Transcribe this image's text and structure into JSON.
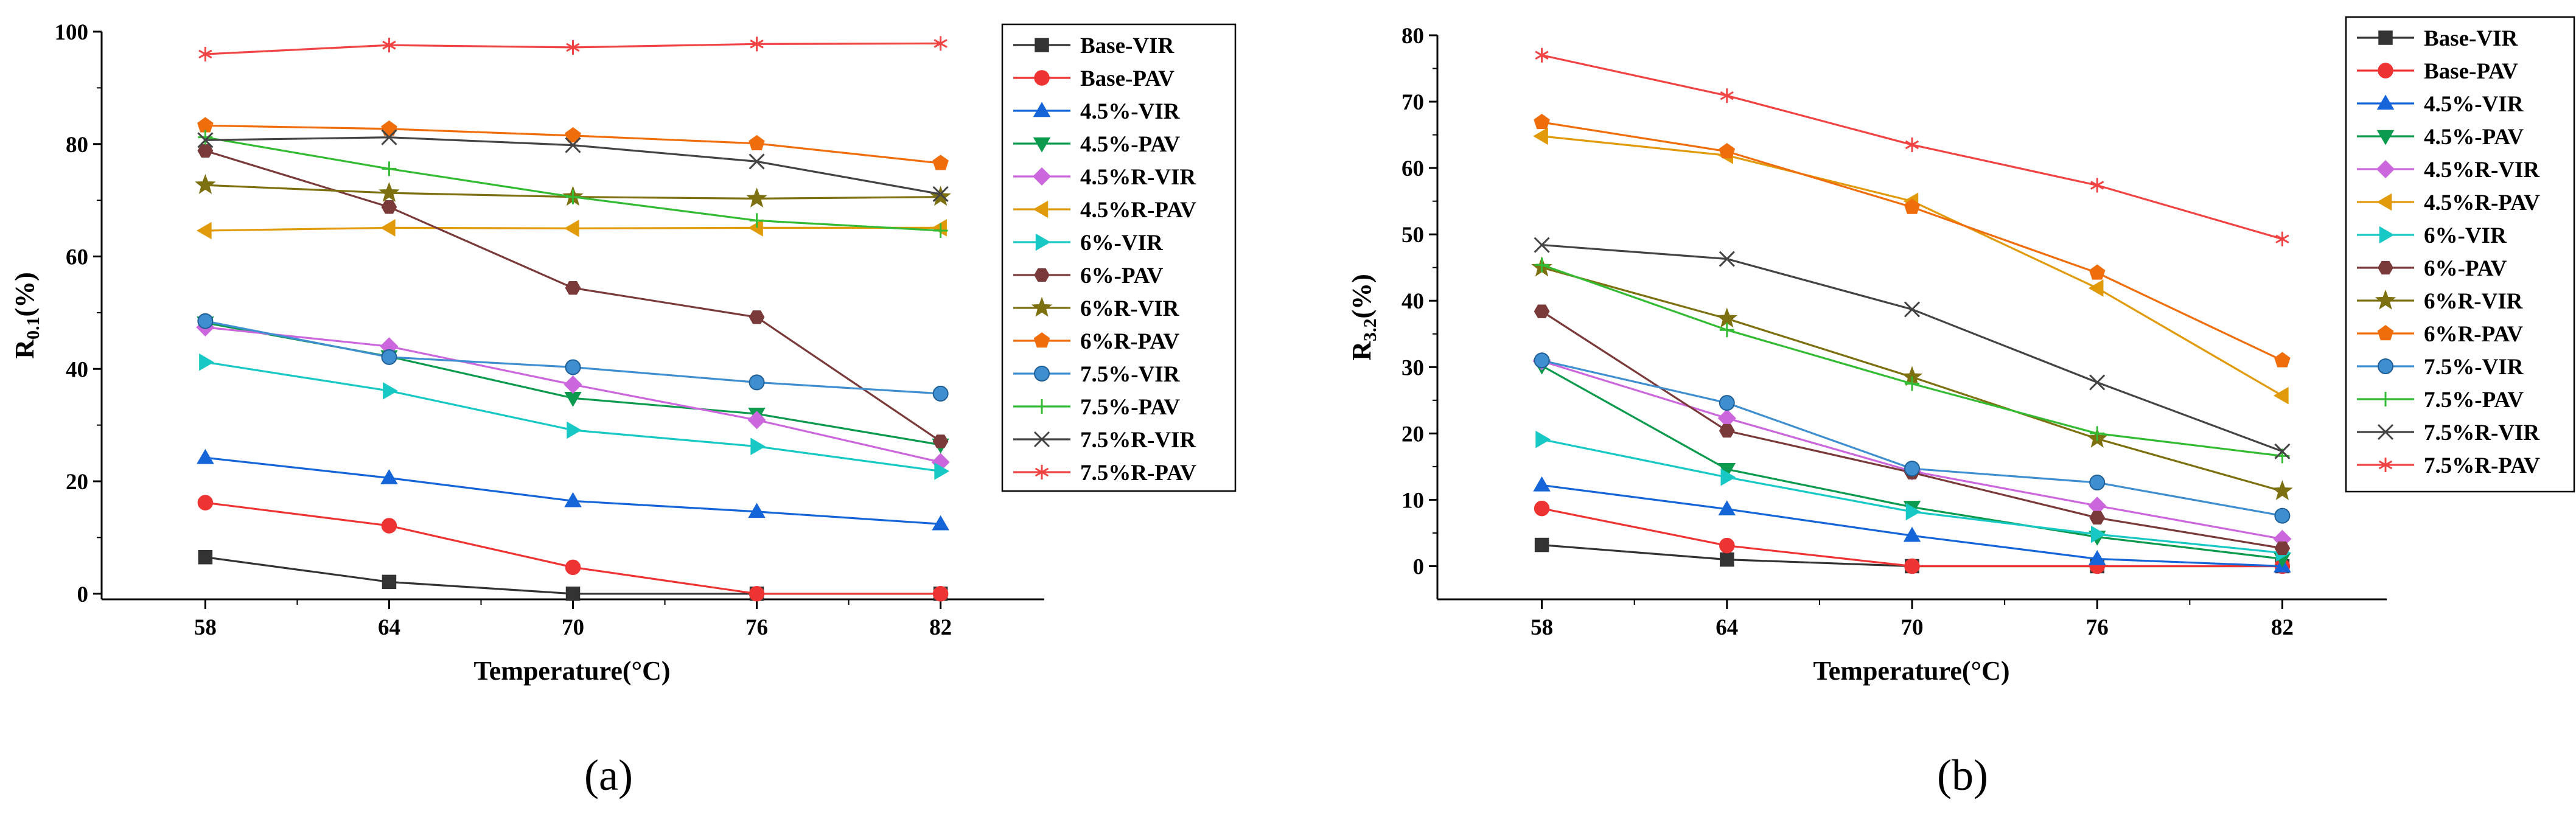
{
  "figure": {
    "panel_labels": {
      "a": "(a)",
      "b": "(b)"
    }
  },
  "chart_data": [
    {
      "type": "line",
      "panel": "(a)",
      "title": "",
      "xlabel": "Temperature(°C)",
      "ylabel_main": "R",
      "ylabel_sub": "0.1",
      "ylabel_tail": "(%)",
      "x": [
        58,
        64,
        70,
        76,
        82
      ],
      "xticks": [
        "58",
        "64",
        "70",
        "76",
        "82"
      ],
      "ylim": [
        -1,
        100
      ],
      "yticks": [
        0,
        20,
        40,
        60,
        80,
        100
      ],
      "yticklabels": [
        "0",
        "20",
        "40",
        "60",
        "80",
        "100"
      ],
      "grid": false,
      "legend": "right",
      "series": [
        {
          "name": "Base-VIR",
          "color": "#333333",
          "marker": "square",
          "values": [
            6.5,
            2.1,
            0.0,
            0.0,
            0.0
          ]
        },
        {
          "name": "Base-PAV",
          "color": "#ee3333",
          "marker": "circle",
          "values": [
            16.2,
            12.1,
            4.7,
            0.0,
            0.0
          ]
        },
        {
          "name": "4.5%-VIR",
          "color": "#1565d8",
          "marker": "triangle-up",
          "values": [
            24.2,
            20.6,
            16.5,
            14.6,
            12.4
          ]
        },
        {
          "name": "4.5%-PAV",
          "color": "#0c9a4e",
          "marker": "triangle-down",
          "values": [
            48.2,
            42.2,
            34.8,
            32.0,
            26.5
          ]
        },
        {
          "name": "4.5%R-VIR",
          "color": "#cc66dd",
          "marker": "diamond",
          "values": [
            47.4,
            44.0,
            37.2,
            30.9,
            23.4
          ]
        },
        {
          "name": "4.5%R-PAV",
          "color": "#e09a0a",
          "marker": "triangle-left",
          "values": [
            64.6,
            65.1,
            65.0,
            65.1,
            65.1
          ]
        },
        {
          "name": "6%-VIR",
          "color": "#18c8c4",
          "marker": "triangle-right",
          "values": [
            41.2,
            36.1,
            29.1,
            26.2,
            21.8
          ]
        },
        {
          "name": "6%-PAV",
          "color": "#7a3a3a",
          "marker": "hexagon",
          "values": [
            78.8,
            68.8,
            54.4,
            49.2,
            27.1
          ]
        },
        {
          "name": "6%R-VIR",
          "color": "#7d7010",
          "marker": "star",
          "values": [
            72.7,
            71.3,
            70.6,
            70.3,
            70.6
          ]
        },
        {
          "name": "6%R-PAV",
          "color": "#f06d0c",
          "marker": "pentagon",
          "values": [
            83.3,
            82.7,
            81.5,
            80.1,
            76.6
          ]
        },
        {
          "name": "7.5%-VIR",
          "color": "#3f8fd0",
          "marker": "sphere",
          "values": [
            48.5,
            42.1,
            40.3,
            37.6,
            35.6
          ]
        },
        {
          "name": "7.5%-PAV",
          "color": "#33bb33",
          "marker": "plus",
          "values": [
            81.2,
            75.6,
            70.6,
            66.4,
            64.6
          ]
        },
        {
          "name": "7.5%R-VIR",
          "color": "#444444",
          "marker": "x",
          "values": [
            80.7,
            81.2,
            79.8,
            76.9,
            71.1
          ]
        },
        {
          "name": "7.5%R-PAV",
          "color": "#f04444",
          "marker": "asterisk",
          "values": [
            96.0,
            97.6,
            97.2,
            97.8,
            97.9
          ]
        }
      ]
    },
    {
      "type": "line",
      "panel": "(b)",
      "title": "",
      "xlabel": "Temperature(°C)",
      "ylabel_main": "R",
      "ylabel_sub": "3.2",
      "ylabel_tail": "(%)",
      "x": [
        58,
        64,
        70,
        76,
        82
      ],
      "xticks": [
        "58",
        "64",
        "70",
        "76",
        "82"
      ],
      "ylim": [
        -5,
        80
      ],
      "yticks": [
        0,
        10,
        20,
        30,
        40,
        50,
        60,
        70,
        80
      ],
      "yticklabels": [
        "0",
        "10",
        "20",
        "30",
        "40",
        "50",
        "60",
        "70",
        "80"
      ],
      "grid": false,
      "legend": "right",
      "series": [
        {
          "name": "Base-VIR",
          "color": "#333333",
          "marker": "square",
          "values": [
            3.2,
            1.0,
            0.0,
            0.0,
            0.0
          ]
        },
        {
          "name": "Base-PAV",
          "color": "#ee3333",
          "marker": "circle",
          "values": [
            8.7,
            3.1,
            0.0,
            0.0,
            0.0
          ]
        },
        {
          "name": "4.5%-VIR",
          "color": "#1565d8",
          "marker": "triangle-up",
          "values": [
            12.2,
            8.6,
            4.6,
            1.1,
            0.0
          ]
        },
        {
          "name": "4.5%-PAV",
          "color": "#0c9a4e",
          "marker": "triangle-down",
          "values": [
            30.2,
            14.6,
            8.9,
            4.4,
            1.1
          ]
        },
        {
          "name": "4.5%R-VIR",
          "color": "#cc66dd",
          "marker": "diamond",
          "values": [
            30.9,
            22.3,
            14.3,
            9.1,
            4.1
          ]
        },
        {
          "name": "4.5%R-PAV",
          "color": "#e09a0a",
          "marker": "triangle-left",
          "values": [
            64.8,
            61.9,
            55.0,
            41.9,
            25.7
          ]
        },
        {
          "name": "6%-VIR",
          "color": "#18c8c4",
          "marker": "triangle-right",
          "values": [
            19.1,
            13.4,
            8.2,
            4.8,
            2.0
          ]
        },
        {
          "name": "6%-PAV",
          "color": "#7a3a3a",
          "marker": "hexagon",
          "values": [
            38.4,
            20.4,
            14.1,
            7.3,
            2.7
          ]
        },
        {
          "name": "6%R-VIR",
          "color": "#7d7010",
          "marker": "star",
          "values": [
            45.0,
            37.3,
            28.5,
            19.2,
            11.3
          ]
        },
        {
          "name": "6%R-PAV",
          "color": "#f06d0c",
          "marker": "pentagon",
          "values": [
            66.9,
            62.5,
            54.1,
            44.2,
            31.0
          ]
        },
        {
          "name": "7.5%-VIR",
          "color": "#3f8fd0",
          "marker": "sphere",
          "values": [
            31.0,
            24.6,
            14.7,
            12.6,
            7.6
          ]
        },
        {
          "name": "7.5%-PAV",
          "color": "#33bb33",
          "marker": "plus",
          "values": [
            45.4,
            35.6,
            27.5,
            20.0,
            16.6
          ]
        },
        {
          "name": "7.5%R-VIR",
          "color": "#444444",
          "marker": "x",
          "values": [
            48.4,
            46.3,
            38.7,
            27.7,
            17.3
          ]
        },
        {
          "name": "7.5%R-PAV",
          "color": "#f04444",
          "marker": "asterisk",
          "values": [
            77.0,
            70.9,
            63.5,
            57.4,
            49.3
          ]
        }
      ]
    }
  ]
}
